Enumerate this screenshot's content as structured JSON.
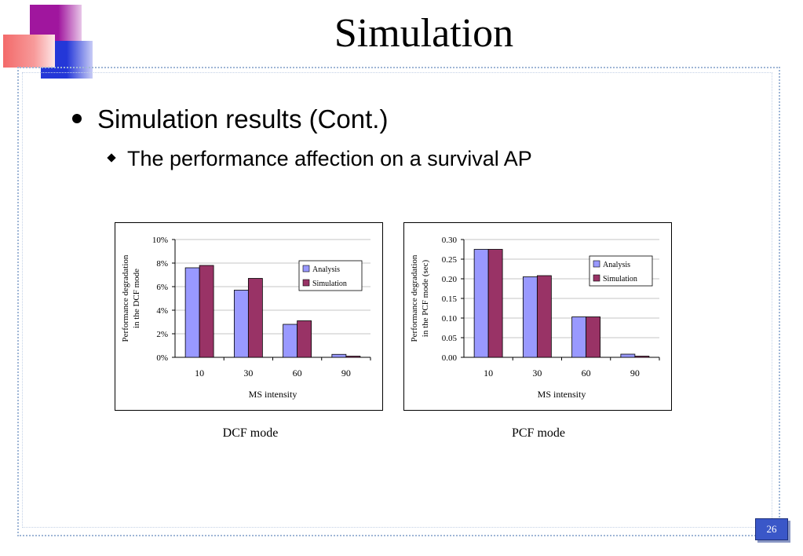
{
  "slide": {
    "title": "Simulation",
    "bullet_1": "Simulation results (Cont.)",
    "bullet_2": "The performance affection on a survival AP",
    "page_number": "26",
    "accent_colors": {
      "magenta": "#a0169e",
      "blue": "#2437d8",
      "salmon": "#f36a6a",
      "frame": "#9fb6d6"
    }
  },
  "chart_data": [
    {
      "type": "bar",
      "caption": "DCF mode",
      "categories": [
        "10",
        "30",
        "60",
        "90"
      ],
      "series": [
        {
          "name": "Analysis",
          "color": "#9999ff",
          "values": [
            7.6,
            5.7,
            2.8,
            0.25
          ]
        },
        {
          "name": "Simulation",
          "color": "#993366",
          "values": [
            7.8,
            6.7,
            3.1,
            0.1
          ]
        }
      ],
      "ylim": [
        0,
        10
      ],
      "yticks": [
        "0%",
        "2%",
        "4%",
        "6%",
        "8%",
        "10%"
      ],
      "ytick_values": [
        0,
        2,
        4,
        6,
        8,
        10
      ],
      "ylabel": [
        "Performance degradation",
        "in the DCF mode"
      ],
      "xlabel": "MS intensity",
      "legend": "right",
      "grid": true
    },
    {
      "type": "bar",
      "caption": "PCF mode",
      "categories": [
        "10",
        "30",
        "60",
        "90"
      ],
      "series": [
        {
          "name": "Analysis",
          "color": "#9999ff",
          "values": [
            0.275,
            0.205,
            0.103,
            0.008
          ]
        },
        {
          "name": "Simulation",
          "color": "#993366",
          "values": [
            0.275,
            0.208,
            0.103,
            0.003
          ]
        }
      ],
      "ylim": [
        0,
        0.3
      ],
      "yticks": [
        "0.00",
        "0.05",
        "0.10",
        "0.15",
        "0.20",
        "0.25",
        "0.30"
      ],
      "ytick_values": [
        0,
        0.05,
        0.1,
        0.15,
        0.2,
        0.25,
        0.3
      ],
      "ylabel": [
        "Performance degradation",
        "in the PCF mode (sec)"
      ],
      "xlabel": "MS intensity",
      "legend": "right",
      "grid": true
    }
  ]
}
